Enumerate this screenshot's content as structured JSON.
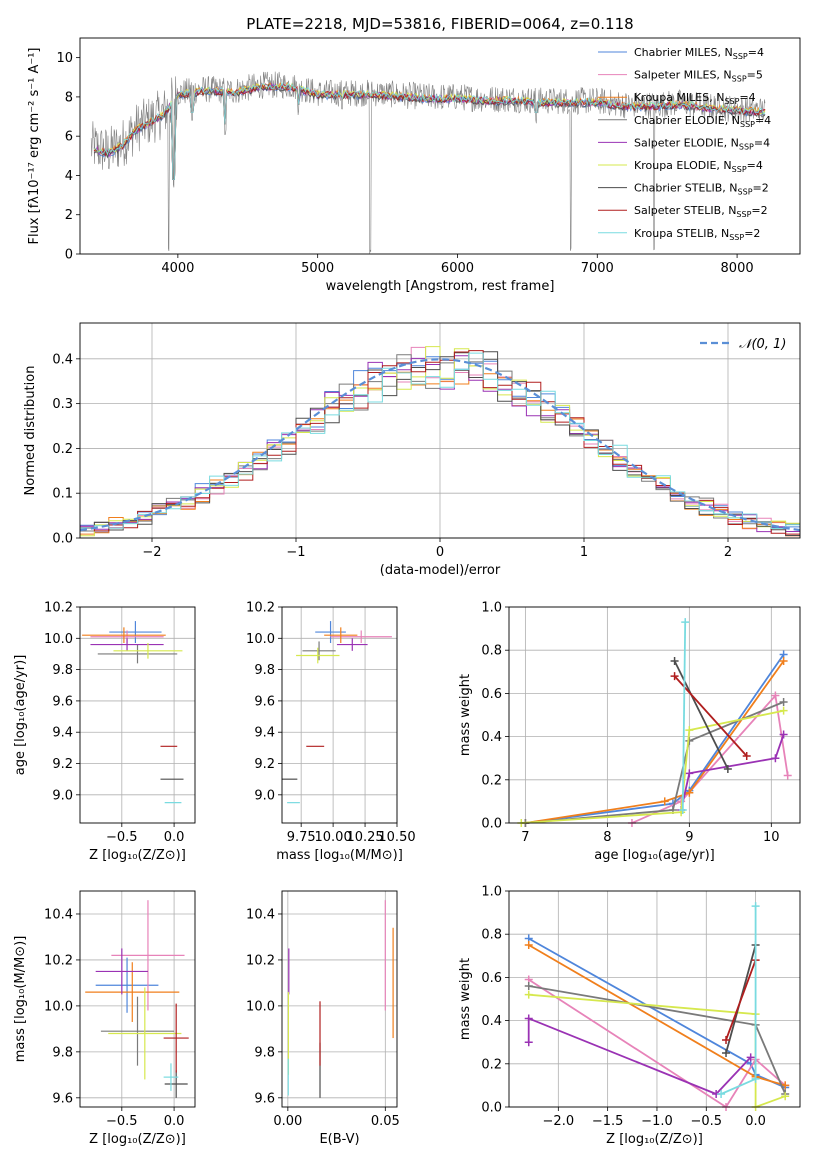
{
  "figure": {
    "title": "PLATE=2218, MJD=53816, FIBERID=0064, z=0.118"
  },
  "colors": {
    "Chabrier MILES": "#4f86db",
    "Salpeter MILES": "#e783b9",
    "Kroupa MILES": "#f07f1c",
    "Chabrier ELODIE": "#7a7a7a",
    "Salpeter ELODIE": "#9a32b4",
    "Kroupa ELODIE": "#d6e84e",
    "Chabrier STELIB": "#4d4d4d",
    "Salpeter STELIB": "#b01e1e",
    "Kroupa STELIB": "#79dbe0",
    "normal": "#5a8fd6",
    "grid": "#b0b0b0"
  },
  "legend": [
    {
      "main": "Chabrier MILES, N",
      "sub": "SSP",
      "tail": "=4"
    },
    {
      "main": "Salpeter MILES, N",
      "sub": "SSP",
      "tail": "=5"
    },
    {
      "main": "Kroupa MILES, N",
      "sub": "SSP",
      "tail": "=4"
    },
    {
      "main": "Chabrier ELODIE, N",
      "sub": "SSP",
      "tail": "=4"
    },
    {
      "main": "Salpeter ELODIE, N",
      "sub": "SSP",
      "tail": "=4"
    },
    {
      "main": "Kroupa ELODIE, N",
      "sub": "SSP",
      "tail": "=4"
    },
    {
      "main": "Chabrier STELIB, N",
      "sub": "SSP",
      "tail": "=2"
    },
    {
      "main": "Salpeter STELIB, N",
      "sub": "SSP",
      "tail": "=2"
    },
    {
      "main": "Kroupa STELIB, N",
      "sub": "SSP",
      "tail": "=2"
    }
  ],
  "chart_data": [
    {
      "id": "spectrum",
      "type": "line",
      "xlabel": "wavelength [Angstrom, rest frame]",
      "ylabel": "Flux [fλ10⁻¹⁷ erg cm⁻² s⁻¹ A⁻¹]",
      "xlim": [
        3300,
        8450
      ],
      "ylim": [
        0,
        11
      ],
      "xticks": [
        "4000",
        "5000",
        "6000",
        "7000",
        "8000"
      ],
      "yticks": [
        "0",
        "2",
        "4",
        "6",
        "8",
        "10"
      ],
      "observed_envelope": {
        "x": [
          3380,
          3500,
          3600,
          3700,
          3800,
          3900,
          4000,
          4200,
          4400,
          4600,
          4800,
          5000,
          5200,
          5400,
          5600,
          5800,
          6000,
          6200,
          6400,
          6600,
          6800,
          7000,
          7200,
          7400,
          7600,
          7800,
          8000,
          8200
        ],
        "y": [
          5.5,
          5.2,
          5.6,
          6.4,
          6.8,
          7.2,
          8.2,
          8.4,
          8.3,
          8.6,
          8.6,
          8.2,
          8.2,
          8.2,
          8.1,
          8.0,
          8.0,
          7.9,
          7.9,
          7.8,
          7.8,
          7.8,
          7.6,
          7.6,
          7.7,
          7.5,
          7.4,
          7.3
        ]
      },
      "absorption_features": [
        {
          "x": 3934,
          "y": 0
        },
        {
          "x": 3969,
          "y": 3.2
        },
        {
          "x": 4102,
          "y": 6.6
        },
        {
          "x": 4340,
          "y": 6.0
        },
        {
          "x": 4861,
          "y": 7.0
        },
        {
          "x": 5175,
          "y": 7.3
        },
        {
          "x": 5376,
          "y": 0
        },
        {
          "x": 5893,
          "y": 7.2
        },
        {
          "x": 6563,
          "y": 6.6
        },
        {
          "x": 6810,
          "y": 0
        },
        {
          "x": 7405,
          "y": 0
        }
      ]
    },
    {
      "id": "residual-histogram",
      "type": "step",
      "xlabel": "(data-model)/error",
      "ylabel": "Normed distribution",
      "xlim": [
        -2.5,
        2.5
      ],
      "ylim": [
        0,
        0.48
      ],
      "xticks": [
        "−2",
        "−1",
        "0",
        "1",
        "2"
      ],
      "yticks": [
        "0.0",
        "0.1",
        "0.2",
        "0.3",
        "0.4"
      ],
      "bin_width": 0.1,
      "series_order": [
        "Chabrier MILES",
        "Salpeter MILES",
        "Kroupa MILES",
        "Chabrier ELODIE",
        "Salpeter ELODIE",
        "Kroupa ELODIE",
        "Chabrier STELIB",
        "Salpeter STELIB",
        "Kroupa STELIB"
      ],
      "normal_curve": {
        "label": "𝒩(0, 1)",
        "mean": 0,
        "sigma": 1
      }
    },
    {
      "id": "age-vs-Z",
      "type": "errorbar",
      "xlabel": "Z [log₁₀(Z/Z⊙)]",
      "ylabel": "age  [log₁₀(age/yr)]",
      "xlim": [
        -0.9,
        0.2
      ],
      "ylim": [
        8.82,
        10.2
      ],
      "xticks": [
        "−0.5",
        "0.0"
      ],
      "yticks": [
        "9.0",
        "9.2",
        "9.4",
        "9.6",
        "9.8",
        "10.0",
        "10.2"
      ],
      "points": [
        {
          "name": "Chabrier MILES",
          "x": -0.37,
          "y": 10.04,
          "xe": 0.25,
          "ye": 0.07
        },
        {
          "name": "Salpeter MILES",
          "x": -0.45,
          "y": 10.01,
          "xe": 0.35,
          "ye": 0.04
        },
        {
          "name": "Kroupa MILES",
          "x": -0.48,
          "y": 10.02,
          "xe": 0.4,
          "ye": 0.05
        },
        {
          "name": "Chabrier ELODIE",
          "x": -0.35,
          "y": 9.9,
          "xe": 0.38,
          "ye": 0.06
        },
        {
          "name": "Salpeter ELODIE",
          "x": -0.45,
          "y": 9.96,
          "xe": 0.35,
          "ye": 0.04
        },
        {
          "name": "Kroupa ELODIE",
          "x": -0.25,
          "y": 9.92,
          "xe": 0.33,
          "ye": 0.05
        },
        {
          "name": "Chabrier STELIB",
          "x": -0.02,
          "y": 9.1,
          "xe": 0.11,
          "ye": 0.0
        },
        {
          "name": "Salpeter STELIB",
          "x": -0.05,
          "y": 9.31,
          "xe": 0.08,
          "ye": 0.0
        },
        {
          "name": "Kroupa STELIB",
          "x": -0.01,
          "y": 8.95,
          "xe": 0.08,
          "ye": 0.0
        }
      ]
    },
    {
      "id": "age-vs-mass",
      "type": "errorbar",
      "xlabel": "mass [log₁₀(M/M⊙)]",
      "ylabel": "",
      "xlim": [
        9.6,
        10.5
      ],
      "ylim": [
        8.82,
        10.2
      ],
      "xticks": [
        "9.75",
        "10.00",
        "10.25",
        "10.50"
      ],
      "yticks": [
        "9.0",
        "9.2",
        "9.4",
        "9.6",
        "9.8",
        "10.0",
        "10.2"
      ],
      "points": [
        {
          "name": "Chabrier MILES",
          "x": 9.98,
          "y": 10.04,
          "xe": 0.12,
          "ye": 0.07
        },
        {
          "name": "Salpeter MILES",
          "x": 10.22,
          "y": 10.01,
          "xe": 0.24,
          "ye": 0.04
        },
        {
          "name": "Kroupa MILES",
          "x": 10.06,
          "y": 10.02,
          "xe": 0.13,
          "ye": 0.05
        },
        {
          "name": "Chabrier ELODIE",
          "x": 9.89,
          "y": 9.92,
          "xe": 0.13,
          "ye": 0.06
        },
        {
          "name": "Salpeter ELODIE",
          "x": 10.15,
          "y": 9.96,
          "xe": 0.12,
          "ye": 0.04
        },
        {
          "name": "Kroupa ELODIE",
          "x": 9.88,
          "y": 9.89,
          "xe": 0.17,
          "ye": 0.05
        },
        {
          "name": "Chabrier STELIB",
          "x": 9.66,
          "y": 9.1,
          "xe": 0.06,
          "ye": 0.0
        },
        {
          "name": "Salpeter STELIB",
          "x": 9.86,
          "y": 9.31,
          "xe": 0.07,
          "ye": 0.0
        },
        {
          "name": "Kroupa STELIB",
          "x": 9.69,
          "y": 8.95,
          "xe": 0.05,
          "ye": 0.0
        }
      ]
    },
    {
      "id": "weight-vs-age",
      "type": "line",
      "xlabel": "age  [log₁₀(age/yr)]",
      "ylabel": "mass weight",
      "xlim": [
        6.8,
        10.35
      ],
      "ylim": [
        0,
        1
      ],
      "xticks": [
        "7",
        "8",
        "9",
        "10"
      ],
      "yticks": [
        "0.0",
        "0.2",
        "0.4",
        "0.6",
        "0.8",
        "1.0"
      ],
      "series": [
        {
          "name": "Chabrier MILES",
          "x": [
            7.0,
            8.8,
            9.0,
            10.15
          ],
          "y": [
            0.0,
            0.09,
            0.15,
            0.78
          ]
        },
        {
          "name": "Salpeter MILES",
          "x": [
            8.3,
            8.9,
            10.05,
            10.2
          ],
          "y": [
            0.0,
            0.1,
            0.59,
            0.22
          ]
        },
        {
          "name": "Kroupa MILES",
          "x": [
            7.0,
            8.7,
            9.0,
            10.15
          ],
          "y": [
            0.0,
            0.1,
            0.14,
            0.75
          ]
        },
        {
          "name": "Chabrier ELODIE",
          "x": [
            7.0,
            8.8,
            9.0,
            10.15
          ],
          "y": [
            0.0,
            0.06,
            0.38,
            0.56
          ]
        },
        {
          "name": "Salpeter ELODIE",
          "x": [
            8.9,
            9.0,
            10.05,
            10.15
          ],
          "y": [
            0.06,
            0.23,
            0.3,
            0.41
          ]
        },
        {
          "name": "Kroupa ELODIE",
          "x": [
            6.95,
            8.9,
            9.0,
            10.15
          ],
          "y": [
            0.0,
            0.05,
            0.43,
            0.52
          ]
        },
        {
          "name": "Chabrier STELIB",
          "x": [
            8.82,
            9.47
          ],
          "y": [
            0.75,
            0.25
          ]
        },
        {
          "name": "Salpeter STELIB",
          "x": [
            8.82,
            9.7
          ],
          "y": [
            0.68,
            0.31
          ]
        },
        {
          "name": "Kroupa STELIB",
          "x": [
            8.92,
            8.95
          ],
          "y": [
            0.06,
            0.93
          ]
        }
      ]
    },
    {
      "id": "mass-vs-Z",
      "type": "errorbar",
      "xlabel": "Z [log₁₀(Z/Z⊙)]",
      "ylabel": "mass [log₁₀(M/M⊙)]",
      "xlim": [
        -0.9,
        0.2
      ],
      "ylim": [
        9.56,
        10.5
      ],
      "xticks": [
        "−0.5",
        "0.0"
      ],
      "yticks": [
        "9.6",
        "9.8",
        "10.0",
        "10.2",
        "10.4"
      ],
      "points": [
        {
          "name": "Chabrier MILES",
          "x": -0.45,
          "y": 10.09,
          "xe": 0.3,
          "ye": 0.12
        },
        {
          "name": "Salpeter MILES",
          "x": -0.25,
          "y": 10.22,
          "xe": 0.35,
          "ye": 0.24
        },
        {
          "name": "Kroupa MILES",
          "x": -0.4,
          "y": 10.06,
          "xe": 0.45,
          "ye": 0.13
        },
        {
          "name": "Chabrier ELODIE",
          "x": -0.35,
          "y": 9.89,
          "xe": 0.35,
          "ye": 0.15
        },
        {
          "name": "Salpeter ELODIE",
          "x": -0.5,
          "y": 10.15,
          "xe": 0.25,
          "ye": 0.1
        },
        {
          "name": "Kroupa ELODIE",
          "x": -0.28,
          "y": 9.88,
          "xe": 0.35,
          "ye": 0.2
        },
        {
          "name": "Chabrier STELIB",
          "x": 0.02,
          "y": 9.66,
          "xe": 0.11,
          "ye": 0.06
        },
        {
          "name": "Salpeter STELIB",
          "x": 0.02,
          "y": 9.86,
          "xe": 0.12,
          "ye": 0.15
        },
        {
          "name": "Kroupa STELIB",
          "x": -0.03,
          "y": 9.69,
          "xe": 0.07,
          "ye": 0.06
        }
      ]
    },
    {
      "id": "ebv-mass",
      "type": "errorbar",
      "xlabel": "E(B-V)",
      "ylabel": "",
      "xlim": [
        -0.003,
        0.056
      ],
      "ylim": [
        9.56,
        10.5
      ],
      "xticks": [
        "0.00",
        "0.05"
      ],
      "yticks": [
        "9.6",
        "9.8",
        "10.0",
        "10.2",
        "10.4"
      ],
      "points": [
        {
          "name": "Salpeter ELODIE",
          "x": 0.0005,
          "y": 10.15,
          "xe": 0,
          "ye": 0.1
        },
        {
          "name": "Kroupa ELODIE",
          "x": 0.0003,
          "y": 9.88,
          "xe": 0,
          "ye": 0.18
        },
        {
          "name": "Kroupa STELIB",
          "x": 0.0002,
          "y": 9.69,
          "xe": 0,
          "ye": 0.08
        },
        {
          "name": "Chabrier STELIB",
          "x": 0.0165,
          "y": 9.72,
          "xe": 0,
          "ye": 0.12
        },
        {
          "name": "Salpeter STELIB",
          "x": 0.0165,
          "y": 9.88,
          "xe": 0,
          "ye": 0.14
        },
        {
          "name": "Salpeter MILES",
          "x": 0.05,
          "y": 10.22,
          "xe": 0,
          "ye": 0.24
        },
        {
          "name": "Kroupa MILES",
          "x": 0.054,
          "y": 10.1,
          "xe": 0,
          "ye": 0.24
        }
      ]
    },
    {
      "id": "weight-vs-Z",
      "type": "line",
      "xlabel": "Z [log₁₀(Z/Z⊙)]",
      "ylabel": "mass weight",
      "xlim": [
        -2.5,
        0.45
      ],
      "ylim": [
        0,
        1
      ],
      "xticks": [
        "−2.0",
        "−1.5",
        "−1.0",
        "−0.5",
        "0.0"
      ],
      "yticks": [
        "0.0",
        "0.2",
        "0.4",
        "0.6",
        "0.8",
        "1.0"
      ],
      "series": [
        {
          "name": "Chabrier MILES",
          "x": [
            -2.3,
            -0.05,
            0.0,
            0.3
          ],
          "y": [
            0.78,
            0.2,
            0.15,
            0.09
          ]
        },
        {
          "name": "Salpeter MILES",
          "x": [
            -2.3,
            -0.3,
            0.0,
            0.3
          ],
          "y": [
            0.59,
            0.0,
            0.22,
            0.1
          ]
        },
        {
          "name": "Kroupa MILES",
          "x": [
            -2.3,
            0.0,
            0.3
          ],
          "y": [
            0.75,
            0.14,
            0.1
          ]
        },
        {
          "name": "Chabrier ELODIE",
          "x": [
            -2.3,
            0.0,
            0.3
          ],
          "y": [
            0.56,
            0.38,
            0.06
          ]
        },
        {
          "name": "Salpeter ELODIE",
          "x": [
            -2.3,
            -2.3,
            -0.4,
            -0.05
          ],
          "y": [
            0.3,
            0.41,
            0.06,
            0.23
          ]
        },
        {
          "name": "Kroupa ELODIE",
          "x": [
            -2.3,
            0.0,
            0.0,
            0.3
          ],
          "y": [
            0.52,
            0.43,
            0.0,
            0.05
          ]
        },
        {
          "name": "Chabrier STELIB",
          "x": [
            -0.3,
            0.0
          ],
          "y": [
            0.25,
            0.75
          ]
        },
        {
          "name": "Salpeter STELIB",
          "x": [
            -0.3,
            0.0
          ],
          "y": [
            0.31,
            0.68
          ]
        },
        {
          "name": "Kroupa STELIB",
          "x": [
            -0.35,
            0.0,
            0.0
          ],
          "y": [
            0.06,
            0.13,
            0.93
          ]
        }
      ]
    }
  ]
}
